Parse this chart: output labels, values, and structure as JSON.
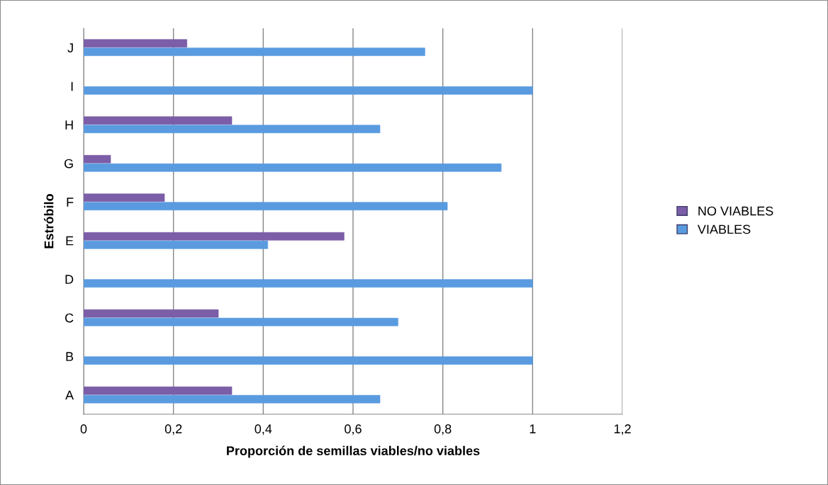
{
  "chart_data": {
    "type": "bar",
    "orientation": "horizontal",
    "xlabel": "Proporción de semillas viables/no viables",
    "ylabel": "Estróbilo",
    "categories": [
      "J",
      "I",
      "H",
      "G",
      "F",
      "E",
      "D",
      "C",
      "B",
      "A"
    ],
    "series": [
      {
        "name": "NO VIABLES",
        "color": "#7b5ea7",
        "values": [
          0.23,
          null,
          0.33,
          0.06,
          0.18,
          0.58,
          null,
          0.3,
          null,
          0.33
        ]
      },
      {
        "name": "VIABLES",
        "color": "#5a9be0",
        "values": [
          0.76,
          1,
          0.66,
          0.93,
          0.81,
          0.41,
          1,
          0.7,
          1,
          0.66
        ]
      }
    ],
    "xlim": [
      0,
      1.2
    ],
    "xticks": [
      0,
      {
        "value": 0.2,
        "label": "0,2"
      },
      {
        "value": 0.4,
        "label": "0,4"
      },
      {
        "value": 0.6,
        "label": "0,6"
      },
      {
        "value": 0.8,
        "label": "0,8"
      },
      1,
      {
        "value": 1.2,
        "label": "1,2"
      }
    ],
    "grid": "x",
    "legend": "right"
  }
}
